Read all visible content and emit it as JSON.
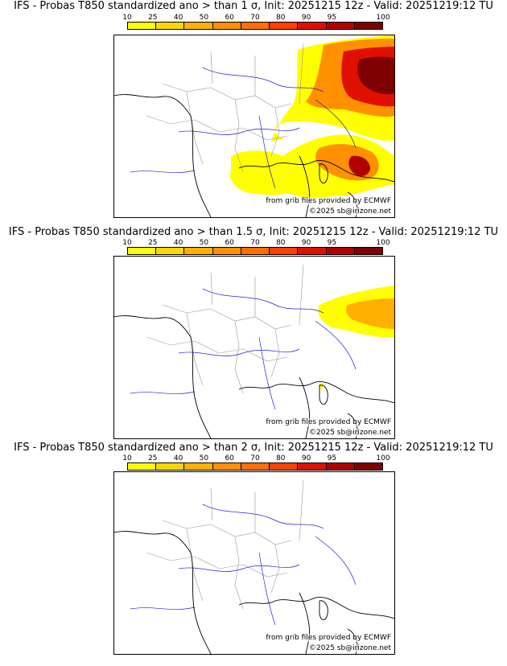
{
  "legend": {
    "labels": [
      "10",
      "25",
      "40",
      "50",
      "60",
      "70",
      "80",
      "90",
      "95",
      "100"
    ],
    "colors": [
      "#ffff00",
      "#ffd700",
      "#ffb000",
      "#ff9000",
      "#ff6e00",
      "#ff4000",
      "#e01000",
      "#b00000",
      "#7f0000",
      "#4a0000"
    ]
  },
  "credits": {
    "source": "from grib files provided by ECMWF",
    "copyright": "©2025 sb@irizone.net"
  },
  "colors": {
    "coast": "#000000",
    "rivers": "#2222cc",
    "borders": "#999999"
  },
  "panels": [
    {
      "title": "IFS - Probas T850  standardized ano > than 1 σ, Init: 20251215 12z - Valid: 20251219:12 TU",
      "threshold": "1"
    },
    {
      "title": "IFS - Probas T850  standardized ano > than 1.5 σ, Init: 20251215 12z - Valid: 20251219:12 TU",
      "threshold": "1.5"
    },
    {
      "title": "IFS - Probas T850  standardized ano > than 2 σ, Init: 20251215 12z - Valid: 20251219:12 TU",
      "threshold": "2"
    }
  ]
}
